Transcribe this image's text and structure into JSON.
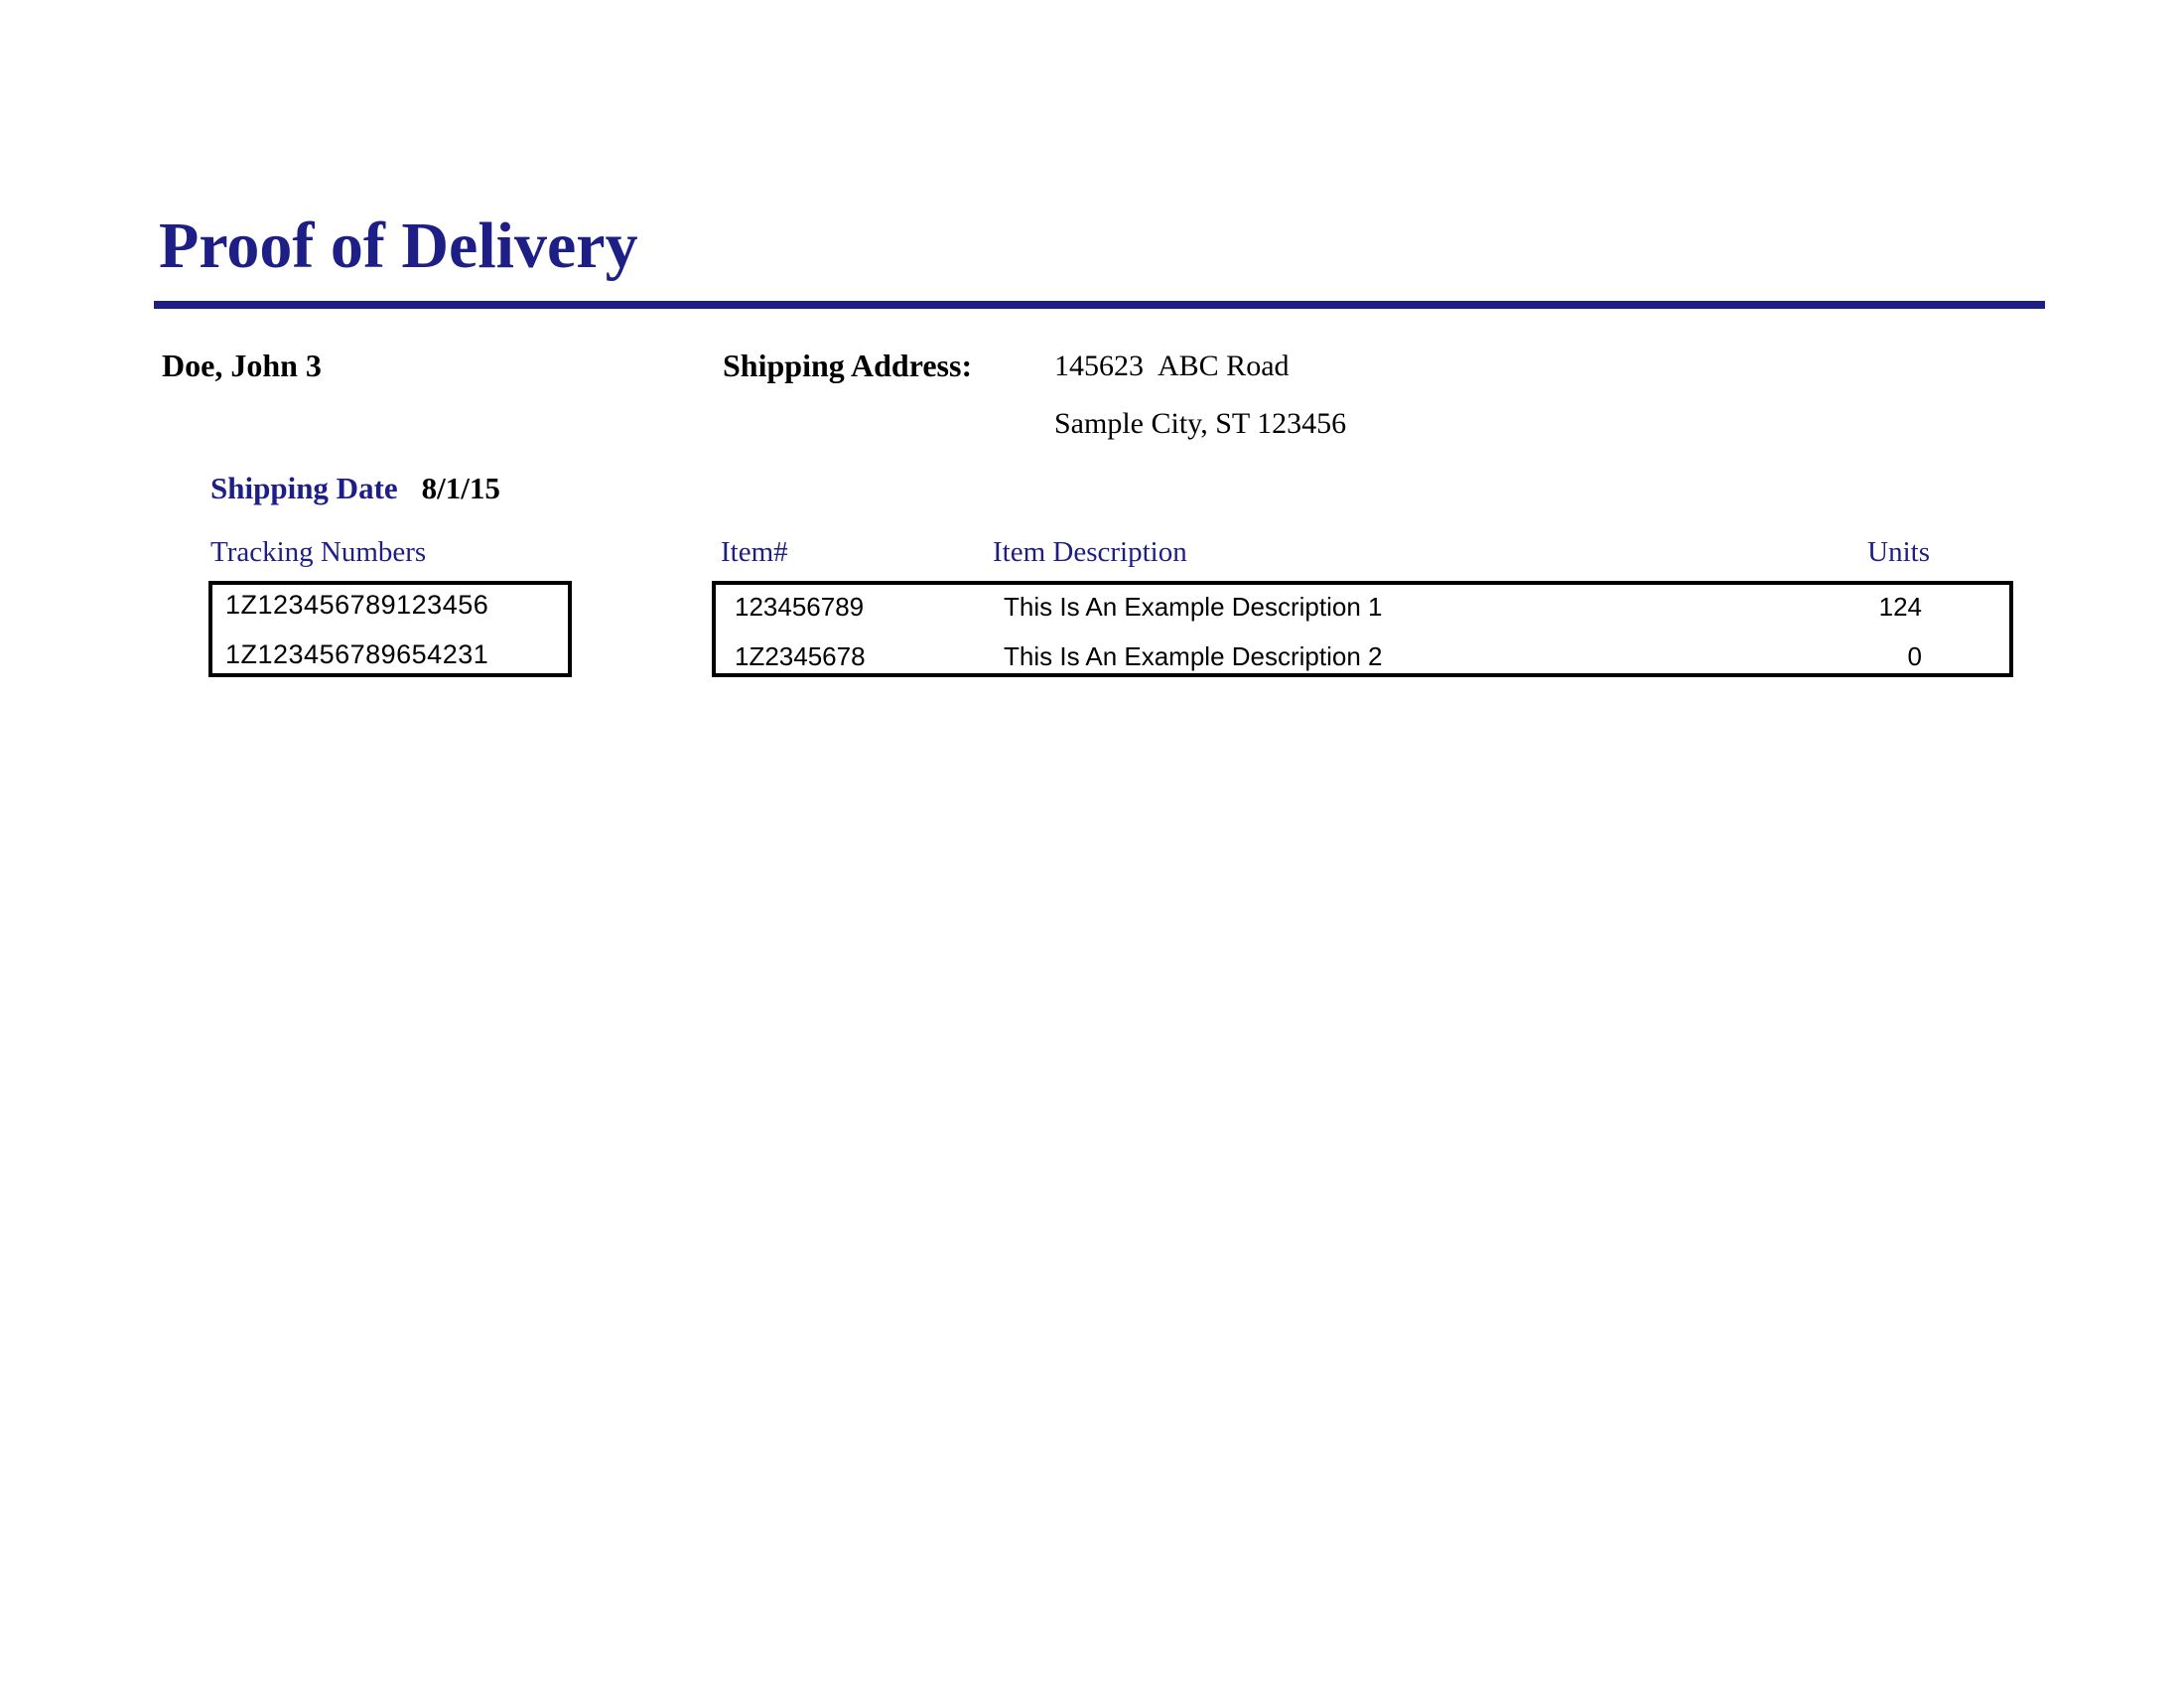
{
  "title": "Proof of Delivery",
  "customer": {
    "name": "Doe, John 3"
  },
  "shipping_address": {
    "label": "Shipping Address:",
    "street_number": "145623",
    "street_name": "ABC Road",
    "city_line": "Sample City, ST 123456"
  },
  "shipping_date": {
    "label": "Shipping Date",
    "value": "8/1/15"
  },
  "tracking": {
    "header": "Tracking Numbers",
    "numbers": [
      "1Z123456789123456",
      "1Z123456789654231"
    ]
  },
  "items": {
    "columns": {
      "item_no": "Item#",
      "description": "Item Description",
      "units": "Units"
    },
    "rows": [
      {
        "item_no": "123456789",
        "description": "This Is An Example Description 1",
        "units": "124"
      },
      {
        "item_no": "1Z2345678",
        "description": "This Is An Example Description 2",
        "units": "0"
      }
    ]
  },
  "colors": {
    "navy": "#1e1e87",
    "text": "#000000"
  }
}
